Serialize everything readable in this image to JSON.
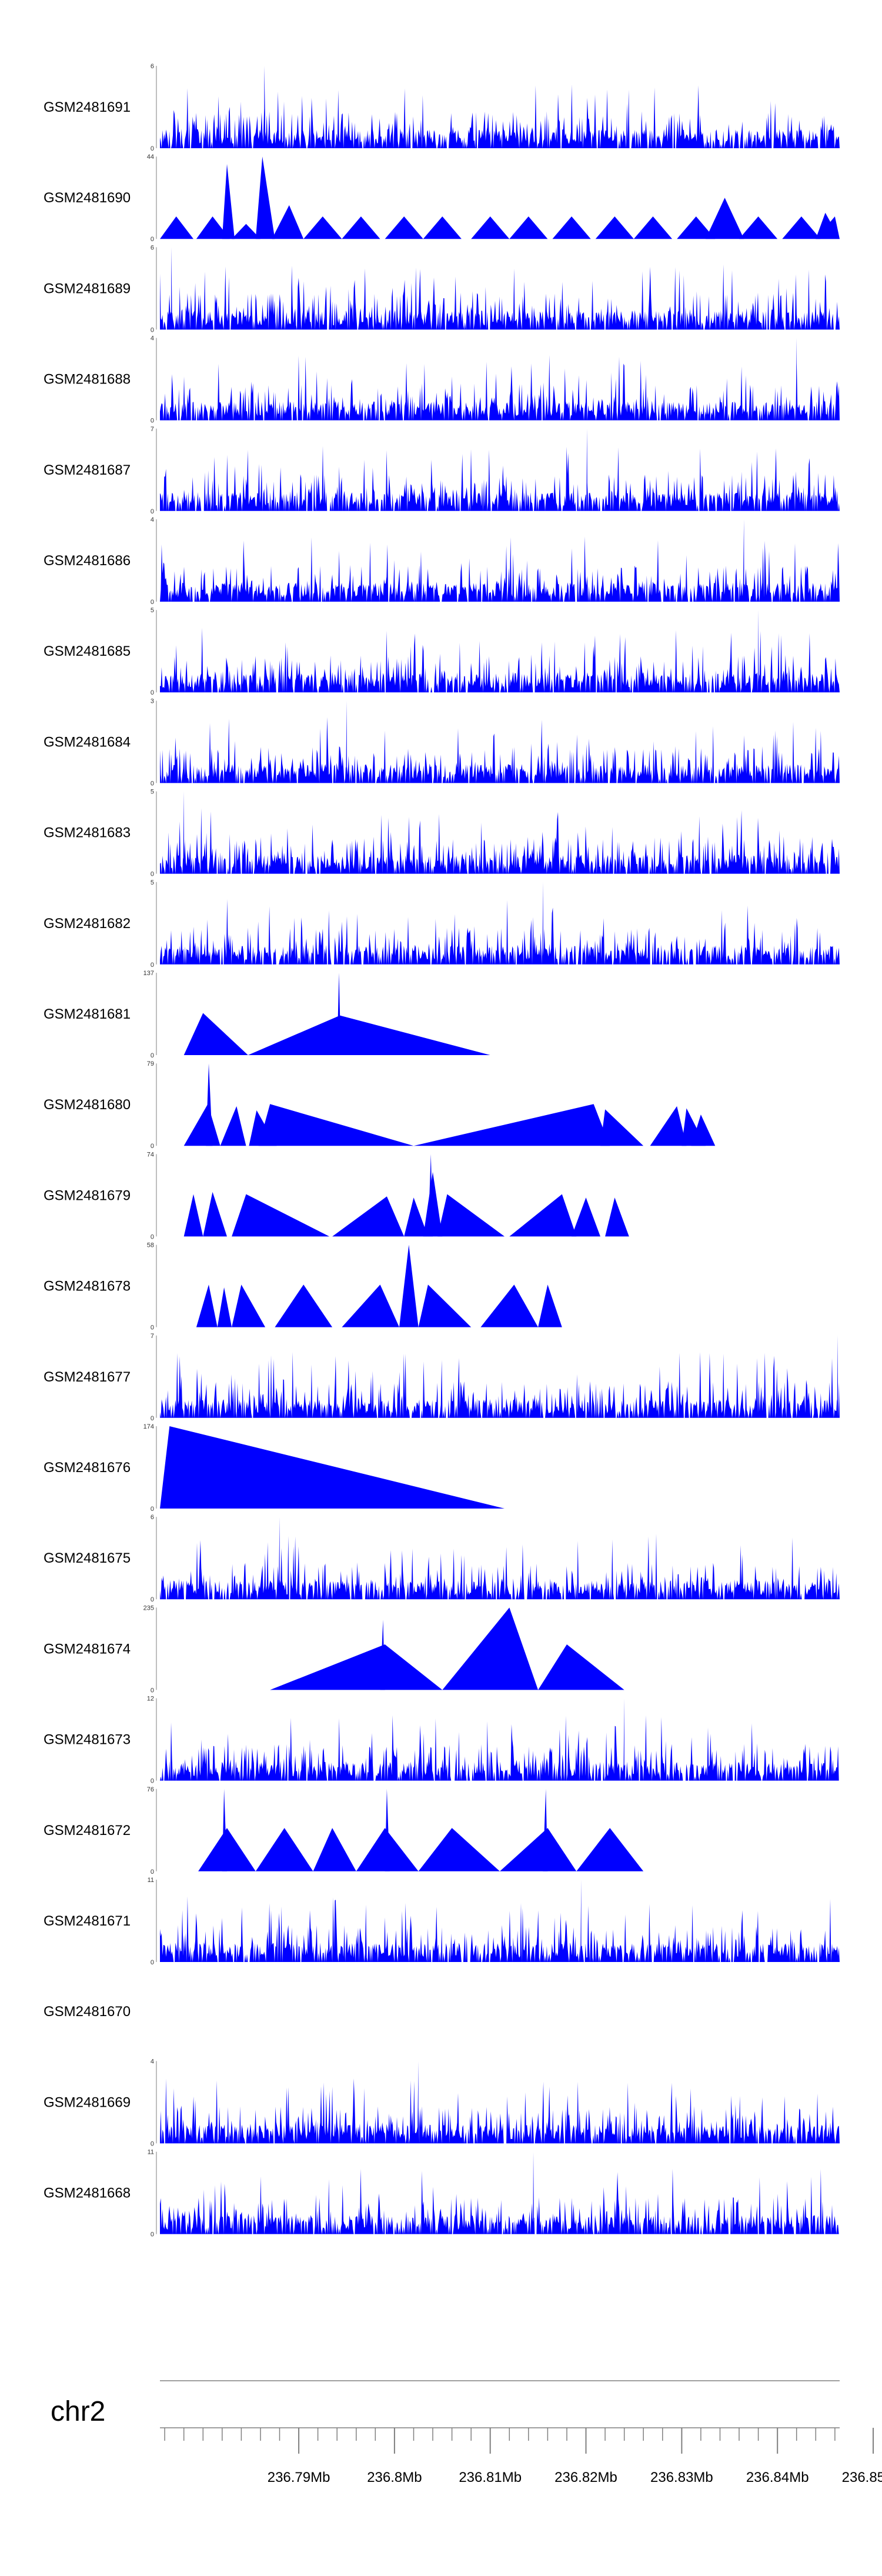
{
  "chart_data": {
    "type": "area",
    "title": "",
    "chromosome": "chr2",
    "xlim": [
      236.7755,
      236.8465
    ],
    "x_tick_labels": [
      "236.79Mb",
      "236.8Mb",
      "236.81Mb",
      "236.82Mb",
      "236.83Mb",
      "236.84Mb",
      "236.85Mb"
    ],
    "x_tick_values": [
      236.79,
      236.8,
      236.81,
      236.82,
      236.83,
      236.84,
      236.85
    ],
    "minor_tick_step": 0.002,
    "fill_color": "#0000ff",
    "axis_color": "#7f7f7f",
    "tracks": [
      {
        "name": "GSM2481691",
        "ymin": 0,
        "ymax": 6,
        "kind": "spiky",
        "peaks": [
          [
            236.7864,
            6
          ]
        ]
      },
      {
        "name": "GSM2481690",
        "ymin": 0,
        "ymax": 44,
        "kind": "triangles",
        "tri": [
          [
            236.7755,
            236.7772,
            236.779,
            12
          ],
          [
            236.7793,
            236.781,
            236.7828,
            12
          ],
          [
            236.782,
            236.7825,
            236.7833,
            40
          ],
          [
            236.783,
            236.7845,
            236.786,
            8
          ],
          [
            236.7855,
            236.7862,
            236.7875,
            44
          ],
          [
            236.7872,
            236.789,
            236.7905,
            18
          ],
          [
            236.7905,
            236.7925,
            236.7945,
            12
          ],
          [
            236.7945,
            236.7965,
            236.7985,
            12
          ],
          [
            236.799,
            236.801,
            236.803,
            12
          ],
          [
            236.803,
            236.805,
            236.807,
            12
          ],
          [
            236.808,
            236.81,
            236.812,
            12
          ],
          [
            236.812,
            236.814,
            236.816,
            12
          ],
          [
            236.8165,
            236.8185,
            236.8205,
            12
          ],
          [
            236.821,
            236.823,
            236.825,
            12
          ],
          [
            236.825,
            236.827,
            236.829,
            12
          ],
          [
            236.8295,
            236.8315,
            236.8335,
            12
          ],
          [
            236.8325,
            236.8345,
            236.8365,
            22
          ],
          [
            236.836,
            236.838,
            236.84,
            12
          ],
          [
            236.8405,
            236.8425,
            236.8445,
            12
          ],
          [
            236.844,
            236.846,
            236.8465,
            12
          ],
          [
            236.844,
            236.845,
            236.8465,
            14
          ]
        ]
      },
      {
        "name": "GSM2481689",
        "ymin": 0,
        "ymax": 6,
        "kind": "spiky",
        "peaks": [
          [
            236.7767,
            6
          ]
        ]
      },
      {
        "name": "GSM2481688",
        "ymin": 0,
        "ymax": 4,
        "kind": "spiky",
        "peaks": [
          [
            236.842,
            4
          ]
        ]
      },
      {
        "name": "GSM2481687",
        "ymin": 0,
        "ymax": 7,
        "kind": "spiky",
        "peaks": [
          [
            236.8201,
            7
          ]
        ]
      },
      {
        "name": "GSM2481686",
        "ymin": 0,
        "ymax": 4,
        "kind": "spiky",
        "peaks": [
          [
            236.8365,
            4
          ]
        ]
      },
      {
        "name": "GSM2481685",
        "ymin": 0,
        "ymax": 5,
        "kind": "spiky",
        "peaks": [
          [
            236.838,
            5
          ]
        ]
      },
      {
        "name": "GSM2481684",
        "ymin": 0,
        "ymax": 3,
        "kind": "spiky",
        "peaks": [
          [
            236.795,
            3
          ]
        ]
      },
      {
        "name": "GSM2481683",
        "ymin": 0,
        "ymax": 5,
        "kind": "spiky",
        "peaks": [
          [
            236.778,
            5
          ]
        ]
      },
      {
        "name": "GSM2481682",
        "ymin": 0,
        "ymax": 5,
        "kind": "spiky",
        "peaks": [
          [
            236.8155,
            5
          ]
        ]
      },
      {
        "name": "GSM2481681",
        "ymin": 0,
        "ymax": 137,
        "kind": "triangles",
        "tri": [
          [
            236.778,
            236.78,
            236.7847,
            70
          ],
          [
            236.7847,
            236.7943,
            236.81,
            66
          ],
          [
            236.794,
            236.7942,
            236.7944,
            137
          ]
        ]
      },
      {
        "name": "GSM2481680",
        "ymin": 0,
        "ymax": 79,
        "kind": "triangles",
        "tri": [
          [
            236.778,
            236.7805,
            236.7818,
            40
          ],
          [
            236.7803,
            236.7806,
            236.781,
            79
          ],
          [
            236.7818,
            236.7835,
            236.7845,
            38
          ],
          [
            236.7848,
            236.7856,
            236.7877,
            34
          ],
          [
            236.7858,
            236.787,
            236.802,
            40
          ],
          [
            236.802,
            236.8208,
            236.8225,
            40
          ],
          [
            236.8215,
            236.822,
            236.826,
            35
          ],
          [
            236.8267,
            236.8295,
            236.8305,
            38
          ],
          [
            236.83,
            236.8305,
            236.8325,
            36
          ],
          [
            236.831,
            236.832,
            236.8335,
            30
          ]
        ]
      },
      {
        "name": "GSM2481679",
        "ymin": 0,
        "ymax": 74,
        "kind": "triangles",
        "tri": [
          [
            236.778,
            236.779,
            236.78,
            38
          ],
          [
            236.78,
            236.781,
            236.7825,
            40
          ],
          [
            236.783,
            236.7845,
            236.7932,
            38
          ],
          [
            236.7935,
            236.7992,
            236.801,
            36
          ],
          [
            236.801,
            236.802,
            236.8035,
            35
          ],
          [
            236.803,
            236.804,
            236.805,
            58
          ],
          [
            236.8035,
            236.8038,
            236.804,
            74
          ],
          [
            236.8045,
            236.8055,
            236.8115,
            38
          ],
          [
            236.812,
            236.8175,
            236.819,
            38
          ],
          [
            236.8185,
            236.82,
            236.8215,
            35
          ],
          [
            236.822,
            236.823,
            236.8245,
            35
          ]
        ]
      },
      {
        "name": "GSM2481678",
        "ymin": 0,
        "ymax": 58,
        "kind": "triangles",
        "tri": [
          [
            236.7793,
            236.7806,
            236.7815,
            30
          ],
          [
            236.7815,
            236.7822,
            236.783,
            28
          ],
          [
            236.783,
            236.784,
            236.7865,
            30
          ],
          [
            236.7875,
            236.7905,
            236.7935,
            30
          ],
          [
            236.7945,
            236.7985,
            236.8005,
            30
          ],
          [
            236.8005,
            236.8015,
            236.8025,
            58
          ],
          [
            236.8025,
            236.8035,
            236.808,
            30
          ],
          [
            236.809,
            236.8125,
            236.815,
            30
          ],
          [
            236.815,
            236.816,
            236.8175,
            30
          ]
        ]
      },
      {
        "name": "GSM2481677",
        "ymin": 0,
        "ymax": 7,
        "kind": "spiky",
        "peaks": [
          [
            236.8463,
            7
          ]
        ]
      },
      {
        "name": "GSM2481676",
        "ymin": 0,
        "ymax": 174,
        "kind": "triangles",
        "tri": [
          [
            236.7755,
            236.7765,
            236.8115,
            174
          ]
        ]
      },
      {
        "name": "GSM2481675",
        "ymin": 0,
        "ymax": 6,
        "kind": "spiky",
        "peaks": [
          [
            236.788,
            6
          ]
        ]
      },
      {
        "name": "GSM2481674",
        "ymin": 0,
        "ymax": 235,
        "kind": "triangles",
        "tri": [
          [
            236.787,
            236.799,
            236.805,
            130
          ],
          [
            236.7985,
            236.7988,
            236.799,
            200
          ],
          [
            236.805,
            236.812,
            236.815,
            235
          ],
          [
            236.815,
            236.818,
            236.824,
            130
          ]
        ]
      },
      {
        "name": "GSM2481673",
        "ymin": 0,
        "ymax": 12,
        "kind": "spiky",
        "peaks": [
          [
            236.824,
            12
          ]
        ]
      },
      {
        "name": "GSM2481672",
        "ymin": 0,
        "ymax": 76,
        "kind": "triangles",
        "tri": [
          [
            236.7795,
            236.7825,
            236.7855,
            40
          ],
          [
            236.7855,
            236.7885,
            236.7915,
            40
          ],
          [
            236.7915,
            236.7935,
            236.796,
            40
          ],
          [
            236.796,
            236.799,
            236.8025,
            40
          ],
          [
            236.8025,
            236.806,
            236.811,
            40
          ],
          [
            236.811,
            236.816,
            236.819,
            40
          ],
          [
            236.819,
            236.8225,
            236.826,
            40
          ],
          [
            236.782,
            236.7822,
            236.7825,
            76
          ],
          [
            236.799,
            236.7992,
            236.7995,
            76
          ],
          [
            236.8155,
            236.8158,
            236.816,
            76
          ]
        ]
      },
      {
        "name": "GSM2481671",
        "ymin": 0,
        "ymax": 11,
        "kind": "spiky",
        "peaks": [
          [
            236.8195,
            11
          ]
        ]
      },
      {
        "name": "GSM2481670",
        "ymin": null,
        "ymax": null,
        "kind": "empty",
        "peaks": []
      },
      {
        "name": "GSM2481669",
        "ymin": 0,
        "ymax": 4,
        "kind": "spiky",
        "peaks": [
          [
            236.8025,
            4
          ]
        ]
      },
      {
        "name": "GSM2481668",
        "ymin": 0,
        "ymax": 11,
        "kind": "spiky",
        "peaks": [
          [
            236.8145,
            11
          ]
        ]
      }
    ]
  }
}
